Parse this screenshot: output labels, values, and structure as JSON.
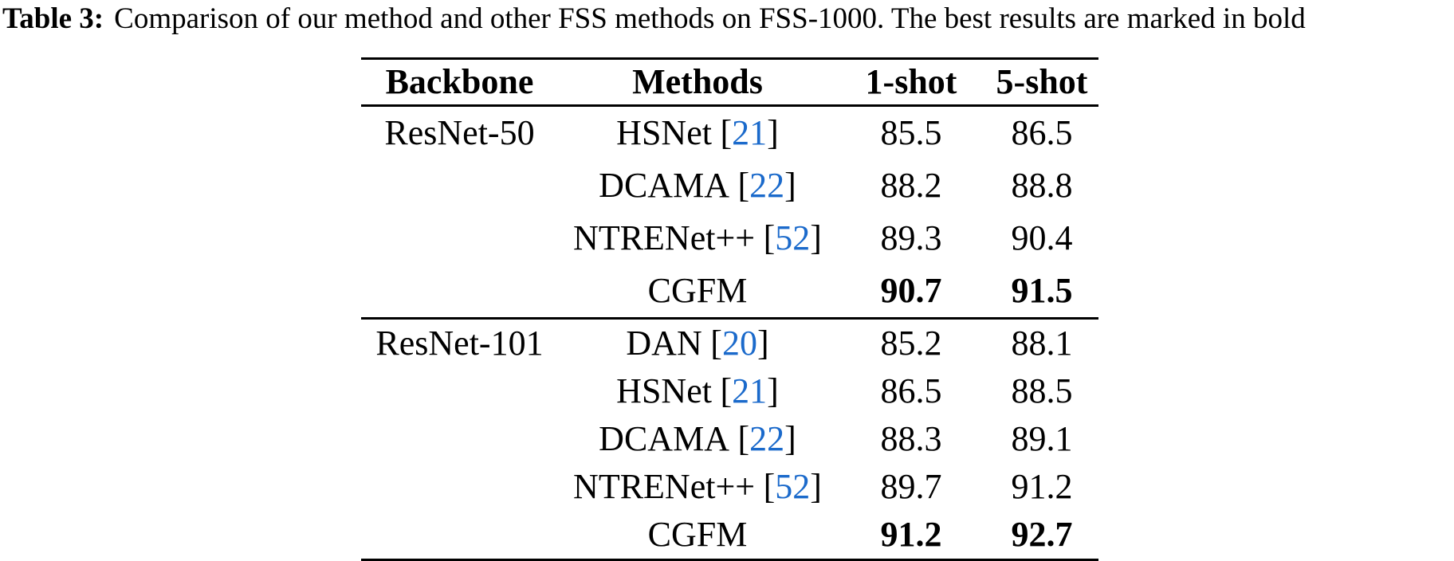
{
  "caption": {
    "label": "Table 3:",
    "text": "Comparison of our method and other FSS methods on FSS-1000. The best results are marked in bold"
  },
  "colors": {
    "citation_blue": "#1b6acb",
    "text": "#000000",
    "background": "#ffffff"
  },
  "table": {
    "headers": {
      "backbone": "Backbone",
      "methods": "Methods",
      "one_shot": "1-shot",
      "five_shot": "5-shot"
    },
    "sections": [
      {
        "backbone": "ResNet-50",
        "rows": [
          {
            "method": "HSNet",
            "cite_open": "[",
            "cite": "21",
            "cite_close": "]",
            "one_shot": "85.5",
            "five_shot": "86.5",
            "best": false
          },
          {
            "method": "DCAMA",
            "cite_open": "[",
            "cite": "22",
            "cite_close": "]",
            "one_shot": "88.2",
            "five_shot": "88.8",
            "best": false
          },
          {
            "method": "NTRENet++",
            "cite_open": "[",
            "cite": "52",
            "cite_close": "]",
            "one_shot": "89.3",
            "five_shot": "90.4",
            "best": false
          },
          {
            "method": "CGFM",
            "cite_open": "",
            "cite": "",
            "cite_close": "",
            "one_shot": "90.7",
            "five_shot": "91.5",
            "best": true
          }
        ]
      },
      {
        "backbone": "ResNet-101",
        "rows": [
          {
            "method": "DAN",
            "cite_open": "[",
            "cite": "20",
            "cite_close": "]",
            "one_shot": "85.2",
            "five_shot": "88.1",
            "best": false
          },
          {
            "method": "HSNet",
            "cite_open": "[",
            "cite": "21",
            "cite_close": "]",
            "one_shot": "86.5",
            "five_shot": "88.5",
            "best": false
          },
          {
            "method": "DCAMA",
            "cite_open": "[",
            "cite": "22",
            "cite_close": "]",
            "one_shot": "88.3",
            "five_shot": "89.1",
            "best": false
          },
          {
            "method": "NTRENet++",
            "cite_open": "[",
            "cite": "52",
            "cite_close": "]",
            "one_shot": "89.7",
            "five_shot": "91.2",
            "best": false
          },
          {
            "method": "CGFM",
            "cite_open": "",
            "cite": "",
            "cite_close": "",
            "one_shot": "91.2",
            "five_shot": "92.7",
            "best": true
          }
        ]
      }
    ]
  }
}
